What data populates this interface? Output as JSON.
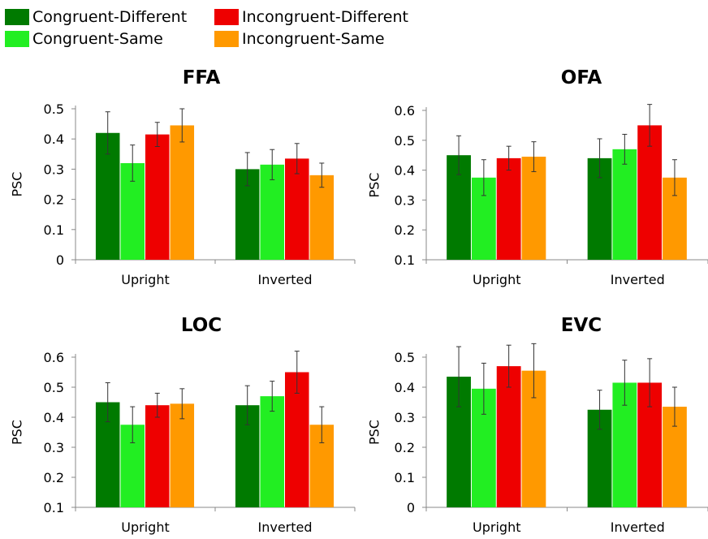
{
  "legend": {
    "items": [
      {
        "label": "Congruent-Different",
        "color": "#007a00"
      },
      {
        "label": "Congruent-Same",
        "color": "#22ee22"
      },
      {
        "label": "Incongruent-Different",
        "color": "#ee0000"
      },
      {
        "label": "Incongruent-Same",
        "color": "#ff9900"
      }
    ]
  },
  "chart_data": [
    {
      "type": "bar",
      "title": "FFA",
      "ylabel": "PSC",
      "xlabel": "",
      "categories": [
        "Upright",
        "Inverted"
      ],
      "ylim": [
        0,
        0.5
      ],
      "yticks": [
        "0",
        "0.1",
        "0.2",
        "0.3",
        "0.4",
        "0.5"
      ],
      "series": [
        {
          "name": "Congruent-Different",
          "values": [
            0.42,
            0.3
          ],
          "errors": [
            0.07,
            0.055
          ]
        },
        {
          "name": "Congruent-Same",
          "values": [
            0.32,
            0.315
          ],
          "errors": [
            0.06,
            0.05
          ]
        },
        {
          "name": "Incongruent-Different",
          "values": [
            0.415,
            0.335
          ],
          "errors": [
            0.04,
            0.05
          ]
        },
        {
          "name": "Incongruent-Same",
          "values": [
            0.445,
            0.28
          ],
          "errors": [
            0.055,
            0.04
          ]
        }
      ]
    },
    {
      "type": "bar",
      "title": "OFA",
      "ylabel": "PSC",
      "xlabel": "",
      "categories": [
        "Upright",
        "Inverted"
      ],
      "ylim": [
        0.1,
        0.6
      ],
      "yticks": [
        "0.1",
        "0.2",
        "0.3",
        "0.4",
        "0.5",
        "0.6"
      ],
      "series": [
        {
          "name": "Congruent-Different",
          "values": [
            0.45,
            0.44
          ],
          "errors": [
            0.065,
            0.065
          ]
        },
        {
          "name": "Congruent-Same",
          "values": [
            0.375,
            0.47
          ],
          "errors": [
            0.06,
            0.05
          ]
        },
        {
          "name": "Incongruent-Different",
          "values": [
            0.44,
            0.55
          ],
          "errors": [
            0.04,
            0.07
          ]
        },
        {
          "name": "Incongruent-Same",
          "values": [
            0.445,
            0.375
          ],
          "errors": [
            0.05,
            0.06
          ]
        }
      ]
    },
    {
      "type": "bar",
      "title": "LOC",
      "ylabel": "PSC",
      "xlabel": "",
      "categories": [
        "Upright",
        "Inverted"
      ],
      "ylim": [
        0.1,
        0.6
      ],
      "yticks": [
        "0.1",
        "0.2",
        "0.3",
        "0.4",
        "0.5",
        "0.6"
      ],
      "series": [
        {
          "name": "Congruent-Different",
          "values": [
            0.45,
            0.44
          ],
          "errors": [
            0.065,
            0.065
          ]
        },
        {
          "name": "Congruent-Same",
          "values": [
            0.375,
            0.47
          ],
          "errors": [
            0.06,
            0.05
          ]
        },
        {
          "name": "Incongruent-Different",
          "values": [
            0.44,
            0.55
          ],
          "errors": [
            0.04,
            0.07
          ]
        },
        {
          "name": "Incongruent-Same",
          "values": [
            0.445,
            0.375
          ],
          "errors": [
            0.05,
            0.06
          ]
        }
      ]
    },
    {
      "type": "bar",
      "title": "EVC",
      "ylabel": "PSC",
      "xlabel": "",
      "categories": [
        "Upright",
        "Inverted"
      ],
      "ylim": [
        0,
        0.5
      ],
      "yticks": [
        "0",
        "0.1",
        "0.2",
        "0.3",
        "0.4",
        "0.5"
      ],
      "series": [
        {
          "name": "Congruent-Different",
          "values": [
            0.435,
            0.325
          ],
          "errors": [
            0.1,
            0.065
          ]
        },
        {
          "name": "Congruent-Same",
          "values": [
            0.395,
            0.415
          ],
          "errors": [
            0.085,
            0.075
          ]
        },
        {
          "name": "Incongruent-Different",
          "values": [
            0.47,
            0.415
          ],
          "errors": [
            0.07,
            0.08
          ]
        },
        {
          "name": "Incongruent-Same",
          "values": [
            0.455,
            0.335
          ],
          "errors": [
            0.09,
            0.065
          ]
        }
      ]
    }
  ]
}
